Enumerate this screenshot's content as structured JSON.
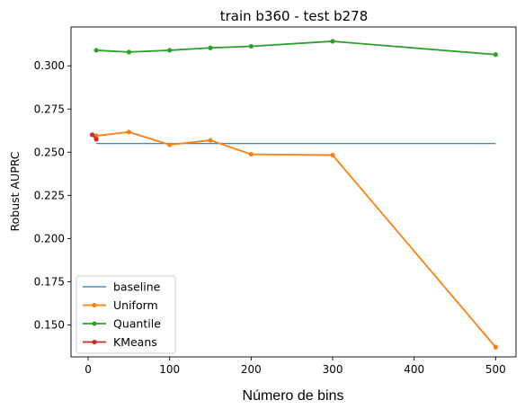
{
  "chart_data": {
    "type": "line",
    "title": "train b360 - test b278",
    "xlabel": "Número de bins",
    "ylabel": "Robust AUPRC",
    "xlim": [
      -21,
      525
    ],
    "ylim": [
      0.1315,
      0.3225
    ],
    "xticks": [
      0,
      100,
      200,
      300,
      400,
      500
    ],
    "yticks": [
      0.15,
      0.175,
      0.2,
      0.225,
      0.25,
      0.275,
      0.3
    ],
    "ytick_labels": [
      "0.150",
      "0.175",
      "0.200",
      "0.225",
      "0.250",
      "0.275",
      "0.300"
    ],
    "grid": false,
    "legend_position": "lower-left",
    "series": [
      {
        "name": "baseline",
        "color": "#1f77b4",
        "marker": false,
        "x": [
          10,
          500
        ],
        "y": [
          0.255,
          0.255
        ]
      },
      {
        "name": "Uniform",
        "color": "#ff7f0e",
        "marker": true,
        "x": [
          10,
          50,
          100,
          150,
          200,
          300,
          500
        ],
        "y": [
          0.2595,
          0.2617,
          0.2543,
          0.2569,
          0.2488,
          0.2483,
          0.1371
        ]
      },
      {
        "name": "Quantile",
        "color": "#2ca02c",
        "marker": true,
        "x": [
          10,
          50,
          100,
          150,
          200,
          300,
          500
        ],
        "y": [
          0.309,
          0.308,
          0.309,
          0.3104,
          0.3113,
          0.3142,
          0.3065
        ]
      },
      {
        "name": "KMeans",
        "color": "#d62728",
        "marker": true,
        "x": [
          5,
          10
        ],
        "y": [
          0.2601,
          0.2575
        ]
      }
    ]
  }
}
